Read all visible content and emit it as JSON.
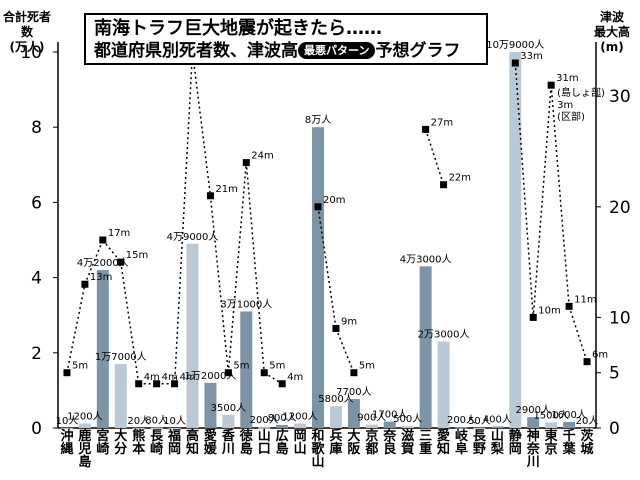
{
  "title": {
    "line1": "南海トラフ巨大地震が起きたら……",
    "line2_prefix": "都道府県別死者数、津波高",
    "badge": "最悪パターン",
    "line2_suffix": "予想グラフ"
  },
  "left_axis": {
    "line1": "合計死者数",
    "line2": "(万人)"
  },
  "right_axis": {
    "line1": "津波",
    "line2": "最大高(m)"
  },
  "chart_data": {
    "type": "bar",
    "title": "南海トラフ巨大地震が起きたら…… 都道府県別死者数、津波高 最悪パターン 予想グラフ",
    "ylabel": "合計死者数(万人)",
    "y2label": "津波最大高(m)",
    "ylim": [
      0,
      10
    ],
    "y2lim": [
      0,
      34
    ],
    "yticks": [
      0,
      2,
      4,
      6,
      8,
      10
    ],
    "y2ticks": [
      0,
      5,
      10,
      20,
      30
    ],
    "grid": false,
    "bar_colors": {
      "light": "#b9cad6",
      "dark": "#7d94a6"
    },
    "line_style": "dotted-with-square-markers",
    "categories": [
      "沖縄",
      "鹿児島",
      "宮崎",
      "大分",
      "熊本",
      "長崎",
      "福岡",
      "高知",
      "愛媛",
      "香川",
      "徳島",
      "山口",
      "広島",
      "岡山",
      "和歌山",
      "兵庫",
      "大阪",
      "京都",
      "奈良",
      "滋賀",
      "三重",
      "愛知",
      "岐阜",
      "長野",
      "山梨",
      "静岡",
      "神奈川",
      "東京",
      "千葉",
      "茨城"
    ],
    "bar_shade": [
      "light",
      "light",
      "dark",
      "light",
      "light",
      "light",
      "light",
      "light",
      "dark",
      "light",
      "dark",
      "light",
      "dark",
      "light",
      "dark",
      "light",
      "dark",
      "light",
      "dark",
      "light",
      "dark",
      "light",
      "dark",
      "light",
      "dark",
      "light",
      "dark",
      "light",
      "dark",
      "light"
    ],
    "series": [
      {
        "name": "死者数",
        "unit": "万人",
        "values": [
          0.001,
          0.12,
          4.2,
          1.7,
          0.002,
          0.008,
          0.001,
          4.9,
          1.2,
          0.35,
          3.1,
          0.02,
          0.08,
          0.12,
          8.0,
          0.58,
          0.77,
          0.09,
          0.17,
          0.05,
          4.3,
          2.3,
          0.02,
          0.005,
          0.04,
          10.9,
          0.29,
          0.15,
          0.16,
          0.002
        ],
        "labels": [
          "10人",
          "1200人",
          "4万2000人",
          "1万7000人",
          "20人",
          "80人",
          "10人",
          "4万9000人",
          "1万2000人",
          "3500人",
          "3万1000人",
          "200人",
          "800人",
          "1200人",
          "8万人",
          "5800人",
          "7700人",
          "900人",
          "1700人",
          "500人",
          "4万3000人",
          "2万3000人",
          "200人",
          "50人",
          "400人",
          "10万9000人",
          "2900人",
          "1500人",
          "1600人",
          "20人"
        ]
      },
      {
        "name": "津波最大高",
        "unit": "m",
        "values": [
          5,
          13,
          17,
          15,
          4,
          4,
          4,
          34,
          21,
          5,
          24,
          5,
          4,
          null,
          20,
          9,
          5,
          null,
          null,
          null,
          27,
          22,
          null,
          null,
          null,
          33,
          10,
          31,
          11,
          6
        ],
        "labels": [
          "5m",
          "13m",
          "17m",
          "15m",
          "4m",
          "4m",
          "4m",
          "34m",
          "21m",
          "5m",
          "24m",
          "5m",
          "4m",
          "",
          "20m",
          "9m",
          "5m",
          "",
          "",
          "",
          "27m",
          "22m",
          "",
          "",
          "",
          "33m",
          "10m",
          "31m",
          "11m",
          "6m"
        ]
      }
    ],
    "annotations": [
      "(島しょ部)",
      "3m",
      "(区部)"
    ]
  }
}
